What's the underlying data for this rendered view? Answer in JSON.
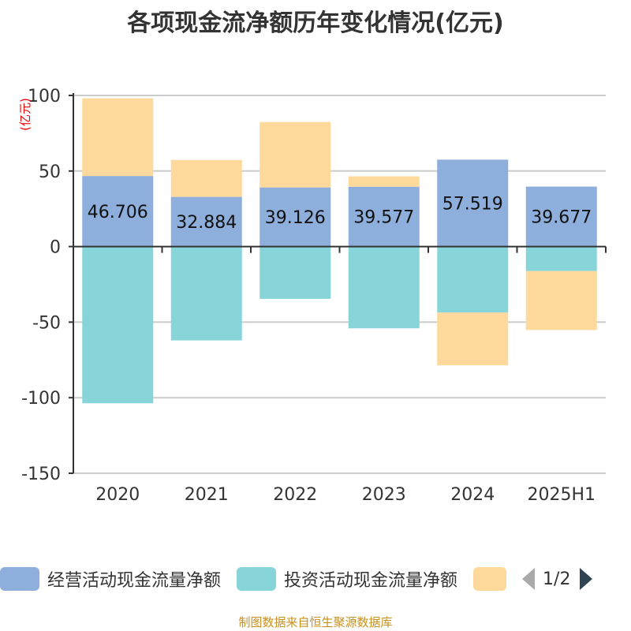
{
  "title": "各项现金流净额历年变化情况(亿元)",
  "footer": "制图数据来自恒生聚源数据库",
  "legend_page": "1/2",
  "chart_data": {
    "type": "bar",
    "stacked": true,
    "title": "各项现金流净额历年变化情况(亿元)",
    "ylabel": "(亿元)",
    "ylim": [
      -150,
      100
    ],
    "yticks": [
      100,
      50,
      0,
      -50,
      -100,
      -150
    ],
    "grid": true,
    "legend_position": "bottom",
    "categories": [
      "2020",
      "2021",
      "2022",
      "2023",
      "2024",
      "2025H1"
    ],
    "series": [
      {
        "name": "经营活动现金流量净额",
        "color": "#8eaedb",
        "values": [
          46.706,
          32.884,
          39.126,
          39.577,
          57.519,
          39.677
        ],
        "labels": [
          "46.706",
          "32.884",
          "39.126",
          "39.577",
          "57.519",
          "39.677"
        ]
      },
      {
        "name": "投资活动现金流量净额",
        "color": "#87d5d8",
        "values": [
          -103.7,
          -62.1,
          -34.6,
          -54.1,
          -43.7,
          -16.2
        ]
      },
      {
        "color": "#fed99b",
        "values": [
          51.4,
          24.4,
          43.3,
          6.9,
          -34.9,
          -39.0
        ]
      }
    ]
  }
}
